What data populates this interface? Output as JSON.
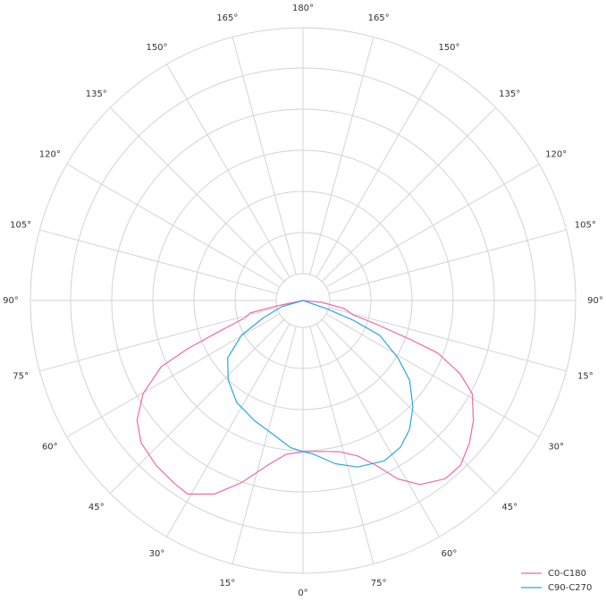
{
  "chart_data": {
    "type": "polar",
    "rlim": [
      0,
      305
    ],
    "rticks": [
      30,
      76,
      122,
      168,
      214,
      260,
      305
    ],
    "angle_ticks": [
      {
        "value": 0,
        "label": "0°"
      },
      {
        "value": 15,
        "label": "15°"
      },
      {
        "value": 30,
        "label": "30°"
      },
      {
        "value": 45,
        "label": "45°"
      },
      {
        "value": 60,
        "label": "60°"
      },
      {
        "value": 75,
        "label": "75°"
      },
      {
        "value": 90,
        "label": "90°"
      },
      {
        "value": 105,
        "label": "105°"
      },
      {
        "value": 120,
        "label": "120°"
      },
      {
        "value": 135,
        "label": "135°"
      },
      {
        "value": 150,
        "label": "150°"
      },
      {
        "value": 165,
        "label": "165°"
      },
      {
        "value": 180,
        "label": "180°"
      },
      {
        "value": 195,
        "label": "165°"
      },
      {
        "value": 210,
        "label": "150°"
      },
      {
        "value": 225,
        "label": "135°"
      },
      {
        "value": 240,
        "label": "120°"
      },
      {
        "value": 255,
        "label": "105°"
      },
      {
        "value": 270,
        "label": "90°"
      },
      {
        "value": 285,
        "label": "15°"
      },
      {
        "value": 300,
        "label": "30°"
      },
      {
        "value": 315,
        "label": "45°"
      },
      {
        "value": 330,
        "label": "60°"
      },
      {
        "value": 345,
        "label": "75°"
      }
    ],
    "grid": true,
    "legend": "lower right",
    "series": [
      {
        "name": "C0-C180",
        "color": "#ee6aa7",
        "theta": [
          0,
          6.3,
          12,
          18.7,
          24.6,
          30.8,
          35.2,
          41.7,
          48.7,
          54.2,
          59.8,
          65,
          67.3,
          70.2,
          73.5,
          76.7,
          78.3,
          180,
          275.4,
          281.1,
          285.9,
          287.8,
          290,
          291.3,
          295,
          298.8,
          305.1,
          310.5,
          316.3,
          321.4,
          327.5,
          332,
          336.2,
          340.7,
          346.4,
          352.9,
          0
        ],
        "r": [
          169,
          173,
          188,
          215,
          238,
          252,
          250,
          247,
          241,
          229,
          207,
          175,
          140,
          95,
          67,
          61,
          30,
          0,
          21,
          47,
          58,
          85,
          129,
          162,
          194,
          216,
          233,
          245,
          255,
          255,
          244,
          226,
          201,
          184,
          174,
          170,
          169
        ]
      },
      {
        "name": "C90-C270",
        "color": "#29a8e0",
        "theta": [
          0,
          4.9,
          12.9,
          21.9,
          33,
          43.3,
          52.7,
          60.5,
          66.6,
          73.7,
          180,
          289.1,
          291.4,
          294.4,
          301.1,
          306.8,
          314,
          320.4,
          326.4,
          333.1,
          341.8,
          348.8,
          356.3,
          0
        ],
        "r": [
          169,
          165,
          153,
          145,
          136,
          122,
          106,
          79,
          48,
          25,
          0,
          28,
          60,
          94,
          124,
          149,
          171,
          187,
          197,
          201,
          196,
          186,
          172,
          169
        ]
      }
    ]
  }
}
